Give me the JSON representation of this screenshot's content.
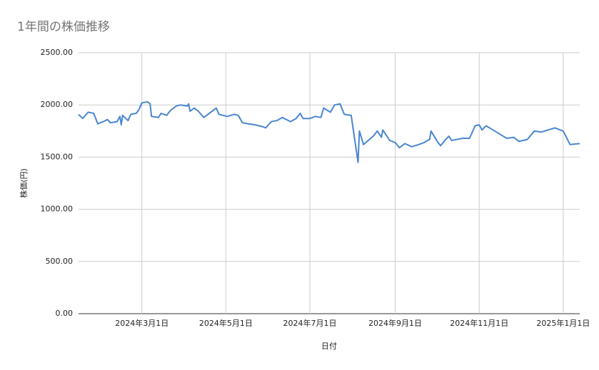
{
  "chart_data": {
    "type": "line",
    "title": "1年間の株価推移",
    "x_label": "日付",
    "y_label": "株価(円)",
    "x": [
      "2024-01-15",
      "2024-01-18",
      "2024-01-22",
      "2024-01-26",
      "2024-01-29",
      "2024-02-02",
      "2024-02-05",
      "2024-02-07",
      "2024-02-12",
      "2024-02-14",
      "2024-02-15",
      "2024-02-16",
      "2024-02-20",
      "2024-02-22",
      "2024-02-26",
      "2024-02-28",
      "2024-03-01",
      "2024-03-05",
      "2024-03-07",
      "2024-03-08",
      "2024-03-13",
      "2024-03-15",
      "2024-03-19",
      "2024-03-22",
      "2024-03-26",
      "2024-03-29",
      "2024-04-03",
      "2024-04-04",
      "2024-04-05",
      "2024-04-08",
      "2024-04-11",
      "2024-04-15",
      "2024-04-19",
      "2024-04-24",
      "2024-04-26",
      "2024-05-02",
      "2024-05-07",
      "2024-05-10",
      "2024-05-13",
      "2024-05-17",
      "2024-05-22",
      "2024-05-28",
      "2024-05-30",
      "2024-06-03",
      "2024-06-07",
      "2024-06-11",
      "2024-06-17",
      "2024-06-21",
      "2024-06-24",
      "2024-06-26",
      "2024-07-01",
      "2024-07-05",
      "2024-07-09",
      "2024-07-11",
      "2024-07-16",
      "2024-07-19",
      "2024-07-23",
      "2024-07-26",
      "2024-07-31",
      "2024-08-05",
      "2024-08-06",
      "2024-08-09",
      "2024-08-16",
      "2024-08-19",
      "2024-08-22",
      "2024-08-23",
      "2024-08-26",
      "2024-08-28",
      "2024-09-01",
      "2024-09-04",
      "2024-09-08",
      "2024-09-13",
      "2024-09-18",
      "2024-09-22",
      "2024-09-26",
      "2024-09-27",
      "2024-10-02",
      "2024-10-04",
      "2024-10-07",
      "2024-10-10",
      "2024-10-12",
      "2024-10-20",
      "2024-10-25",
      "2024-10-29",
      "2024-11-01",
      "2024-11-03",
      "2024-11-06",
      "2024-11-11",
      "2024-11-16",
      "2024-11-21",
      "2024-11-26",
      "2024-11-30",
      "2024-12-06",
      "2024-12-11",
      "2024-12-16",
      "2024-12-21",
      "2024-12-26",
      "2025-01-01",
      "2025-01-06",
      "2025-01-13"
    ],
    "series": [
      {
        "name": "株価",
        "color": "#4a86d0",
        "values": [
          1910,
          1870,
          1930,
          1920,
          1820,
          1840,
          1860,
          1830,
          1840,
          1890,
          1810,
          1900,
          1850,
          1910,
          1920,
          1960,
          2020,
          2030,
          2010,
          1890,
          1880,
          1920,
          1900,
          1950,
          1990,
          2000,
          1990,
          2010,
          1940,
          1970,
          1940,
          1880,
          1920,
          1970,
          1910,
          1890,
          1910,
          1900,
          1830,
          1820,
          1810,
          1790,
          1780,
          1840,
          1850,
          1880,
          1840,
          1870,
          1920,
          1870,
          1870,
          1890,
          1880,
          1970,
          1930,
          2000,
          2010,
          1910,
          1900,
          1450,
          1750,
          1620,
          1700,
          1750,
          1690,
          1760,
          1700,
          1660,
          1640,
          1590,
          1630,
          1600,
          1620,
          1640,
          1670,
          1750,
          1640,
          1610,
          1660,
          1700,
          1660,
          1680,
          1680,
          1800,
          1810,
          1760,
          1800,
          1760,
          1720,
          1680,
          1690,
          1650,
          1670,
          1750,
          1740,
          1760,
          1780,
          1750,
          1620,
          1630
        ]
      }
    ],
    "xlim": [
      "2024-01-15",
      "2025-01-13"
    ],
    "xticks": [
      {
        "value": "2024-03-01",
        "label": "2024年3月1日"
      },
      {
        "value": "2024-05-01",
        "label": "2024年5月1日"
      },
      {
        "value": "2024-07-01",
        "label": "2024年7月1日"
      },
      {
        "value": "2024-09-01",
        "label": "2024年9月1日"
      },
      {
        "value": "2024-11-01",
        "label": "2024年11月1日"
      },
      {
        "value": "2025-01-01",
        "label": "2025年1月1日"
      }
    ],
    "ylim": [
      0,
      2500
    ],
    "yticks": [
      {
        "value": 0,
        "label": "0.00"
      },
      {
        "value": 500,
        "label": "500.00"
      },
      {
        "value": 1000,
        "label": "1000.00"
      },
      {
        "value": 1500,
        "label": "1500.00"
      },
      {
        "value": 2000,
        "label": "2000.00"
      },
      {
        "value": 2500,
        "label": "2500.00"
      }
    ],
    "grid": true
  }
}
